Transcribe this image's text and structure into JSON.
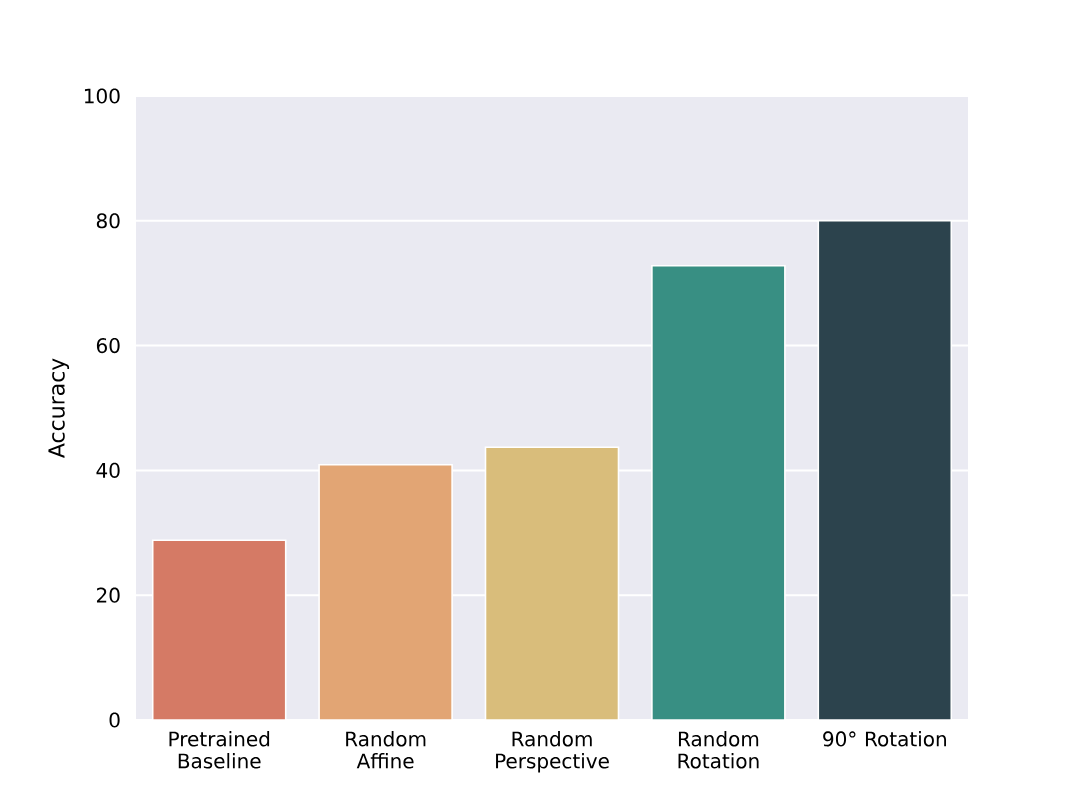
{
  "chart_data": {
    "type": "bar",
    "ylabel": "Accuracy",
    "categories": [
      "Pretrained Baseline",
      "Random Affine",
      "Random Perspective",
      "Random Rotation",
      "90° Rotation"
    ],
    "values": [
      28.8,
      40.9,
      43.7,
      72.8,
      80
    ],
    "colors": [
      "#d57a65",
      "#e2a574",
      "#d9bd7b",
      "#388f83",
      "#2c434d"
    ],
    "ylim": [
      0,
      100
    ],
    "yticks": [
      0,
      20,
      40,
      60,
      80,
      100
    ],
    "grid": "y"
  }
}
